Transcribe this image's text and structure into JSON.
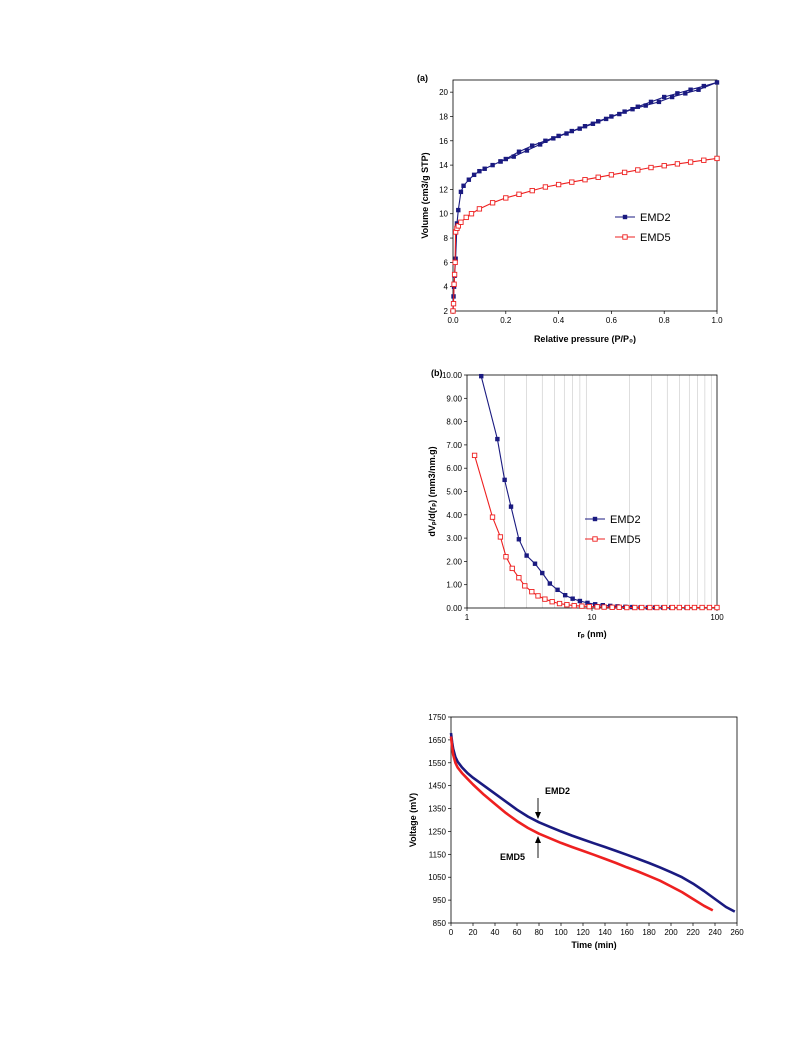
{
  "colors": {
    "emd2": "#1a1a80",
    "emd5": "#ee2020"
  },
  "chart_data": [
    {
      "type": "line",
      "panel_label": "(a)",
      "xlabel": "Relative pressure (P/P₀)",
      "ylabel": "Volume (cm3/g STP)",
      "xlim": [
        0,
        1.0
      ],
      "ylim": [
        2,
        21
      ],
      "x_ticks": [
        "0.0",
        "0.2",
        "0.4",
        "0.6",
        "0.8",
        "1.0"
      ],
      "y_ticks": [
        "2",
        "4",
        "6",
        "8",
        "10",
        "12",
        "14",
        "16",
        "18",
        "20"
      ],
      "legend_position": "center-right",
      "series": [
        {
          "name": "EMD2",
          "marker": "filled-square",
          "x": [
            0.0,
            0.002,
            0.004,
            0.006,
            0.01,
            0.015,
            0.02,
            0.03,
            0.04,
            0.06,
            0.08,
            0.1,
            0.12,
            0.15,
            0.18,
            0.2,
            0.25,
            0.3,
            0.35,
            0.4,
            0.45,
            0.5,
            0.55,
            0.6,
            0.65,
            0.7,
            0.75,
            0.8,
            0.85,
            0.9,
            0.95,
            1.0,
            0.93,
            0.88,
            0.83,
            0.78,
            0.73,
            0.68,
            0.63,
            0.58,
            0.53,
            0.48,
            0.43,
            0.38,
            0.33,
            0.28,
            0.23,
            0.18
          ],
          "y": [
            2.0,
            3.2,
            4.0,
            4.9,
            6.3,
            9.2,
            10.3,
            11.8,
            12.3,
            12.8,
            13.2,
            13.5,
            13.7,
            14.0,
            14.3,
            14.5,
            15.1,
            15.6,
            16.0,
            16.4,
            16.8,
            17.2,
            17.6,
            18.0,
            18.4,
            18.8,
            19.2,
            19.6,
            19.9,
            20.2,
            20.5,
            20.8,
            20.2,
            19.9,
            19.6,
            19.2,
            18.9,
            18.6,
            18.2,
            17.8,
            17.4,
            17.0,
            16.6,
            16.2,
            15.7,
            15.2,
            14.7,
            14.3
          ]
        },
        {
          "name": "EMD5",
          "marker": "open-square",
          "x": [
            0.0,
            0.002,
            0.004,
            0.006,
            0.008,
            0.01,
            0.015,
            0.02,
            0.03,
            0.05,
            0.07,
            0.1,
            0.15,
            0.2,
            0.25,
            0.3,
            0.35,
            0.4,
            0.45,
            0.5,
            0.55,
            0.6,
            0.65,
            0.7,
            0.75,
            0.8,
            0.85,
            0.9,
            0.95,
            1.0
          ],
          "y": [
            2.0,
            2.6,
            4.2,
            5.0,
            6.0,
            8.5,
            8.8,
            9.0,
            9.3,
            9.7,
            10.0,
            10.4,
            10.9,
            11.3,
            11.6,
            11.9,
            12.2,
            12.4,
            12.6,
            12.8,
            13.0,
            13.2,
            13.4,
            13.6,
            13.8,
            13.95,
            14.1,
            14.25,
            14.4,
            14.55
          ]
        }
      ]
    },
    {
      "type": "line",
      "panel_label": "(b)",
      "xlabel": "rₚ (nm)",
      "ylabel": "dVₚ/d(rₚ) (mm3/nm.g)",
      "x_scale": "log",
      "xlim": [
        1,
        100
      ],
      "ylim": [
        0,
        10
      ],
      "x_ticks": [
        "1",
        "10",
        "100"
      ],
      "y_ticks": [
        "0.00",
        "1.00",
        "2.00",
        "3.00",
        "4.00",
        "5.00",
        "6.00",
        "7.00",
        "8.00",
        "9.00",
        "10.00"
      ],
      "grid": "vertical",
      "legend_position": "center-right",
      "series": [
        {
          "name": "EMD2",
          "marker": "filled-square",
          "x": [
            1.3,
            1.75,
            2.0,
            2.25,
            2.6,
            3.0,
            3.5,
            4.0,
            4.6,
            5.3,
            6.1,
            7.0,
            8.0,
            9.2,
            10.6,
            12.2,
            14,
            16,
            18.5,
            21,
            24.5,
            28,
            32,
            37,
            43,
            50,
            57,
            66,
            76,
            87,
            100
          ],
          "y": [
            9.95,
            7.25,
            5.5,
            4.35,
            2.95,
            2.25,
            1.9,
            1.5,
            1.05,
            0.78,
            0.55,
            0.4,
            0.3,
            0.22,
            0.16,
            0.12,
            0.09,
            0.07,
            0.05,
            0.04,
            0.03,
            0.02,
            0.02,
            0.02,
            0.02,
            0.02,
            0.02,
            0.02,
            0.02,
            0.02,
            0.02
          ]
        },
        {
          "name": "EMD5",
          "marker": "open-square",
          "x": [
            1.15,
            1.6,
            1.85,
            2.05,
            2.3,
            2.6,
            2.9,
            3.3,
            3.7,
            4.2,
            4.8,
            5.5,
            6.3,
            7.2,
            8.3,
            9.5,
            11,
            12.5,
            14.5,
            16.5,
            19,
            22,
            25,
            29,
            33,
            38,
            44,
            50,
            58,
            66,
            76,
            87,
            100
          ],
          "y": [
            6.55,
            3.9,
            3.05,
            2.2,
            1.7,
            1.3,
            0.95,
            0.7,
            0.52,
            0.38,
            0.27,
            0.19,
            0.14,
            0.1,
            0.08,
            0.06,
            0.05,
            0.04,
            0.03,
            0.03,
            0.02,
            0.02,
            0.02,
            0.02,
            0.02,
            0.02,
            0.02,
            0.02,
            0.02,
            0.02,
            0.02,
            0.02,
            0.02
          ]
        }
      ]
    },
    {
      "type": "line",
      "xlabel": "Time (min)",
      "ylabel": "Voltage (mV)",
      "xlim": [
        0,
        260
      ],
      "ylim": [
        850,
        1750
      ],
      "x_ticks": [
        "0",
        "20",
        "40",
        "60",
        "80",
        "100",
        "120",
        "140",
        "160",
        "180",
        "200",
        "220",
        "240",
        "260"
      ],
      "y_ticks": [
        "850",
        "950",
        "1050",
        "1150",
        "1250",
        "1350",
        "1450",
        "1550",
        "1650",
        "1750"
      ],
      "annotations": [
        "EMD2",
        "EMD5"
      ],
      "series": [
        {
          "name": "EMD2",
          "x": [
            0,
            1,
            2,
            4,
            6,
            10,
            15,
            20,
            30,
            40,
            50,
            60,
            70,
            80,
            90,
            100,
            110,
            120,
            130,
            140,
            150,
            160,
            170,
            180,
            190,
            200,
            210,
            220,
            230,
            240,
            250,
            258
          ],
          "y": [
            1680,
            1640,
            1610,
            1575,
            1555,
            1530,
            1505,
            1485,
            1450,
            1415,
            1380,
            1345,
            1315,
            1290,
            1270,
            1250,
            1232,
            1215,
            1198,
            1182,
            1165,
            1148,
            1130,
            1112,
            1093,
            1072,
            1050,
            1022,
            990,
            955,
            920,
            900
          ]
        },
        {
          "name": "EMD5",
          "x": [
            0,
            1,
            2,
            4,
            6,
            10,
            15,
            20,
            30,
            40,
            50,
            60,
            70,
            80,
            90,
            100,
            110,
            120,
            130,
            140,
            150,
            160,
            170,
            180,
            190,
            200,
            210,
            220,
            230,
            238
          ],
          "y": [
            1665,
            1620,
            1585,
            1550,
            1530,
            1505,
            1480,
            1455,
            1410,
            1370,
            1330,
            1295,
            1265,
            1240,
            1220,
            1200,
            1182,
            1165,
            1148,
            1130,
            1112,
            1093,
            1075,
            1055,
            1035,
            1010,
            985,
            955,
            925,
            905
          ]
        }
      ]
    }
  ]
}
